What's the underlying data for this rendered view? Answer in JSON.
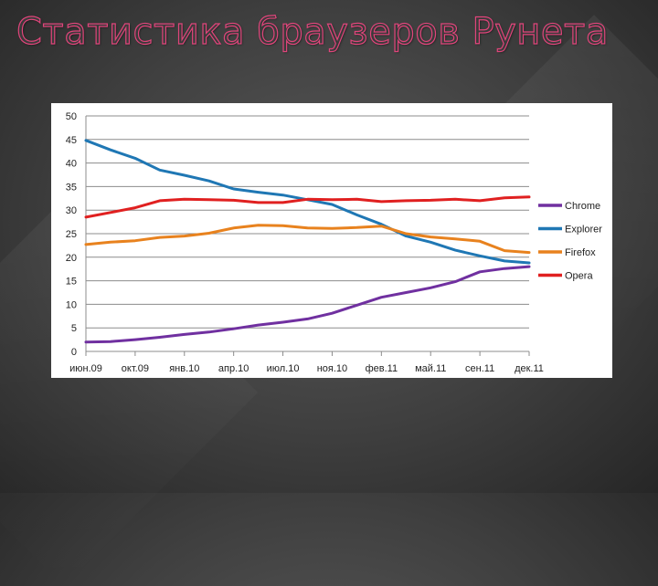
{
  "slide": {
    "title": "Статистика браузеров Рунета"
  },
  "chart_data": {
    "type": "line",
    "title": "",
    "xlabel": "",
    "ylabel": "",
    "ylim": [
      0,
      50
    ],
    "yticks": [
      0,
      5,
      10,
      15,
      20,
      25,
      30,
      35,
      40,
      45,
      50
    ],
    "grid": "horizontal",
    "legend": "right",
    "x_tick_labels": [
      "июн.09",
      "окт.09",
      "янв.10",
      "апр.10",
      "июл.10",
      "ноя.10",
      "фев.11",
      "май.11",
      "сен.11",
      "дек.11"
    ],
    "x_tick_positions": [
      0,
      1,
      2,
      3,
      4,
      5,
      6,
      7,
      8,
      9
    ],
    "x_max": 9,
    "series": [
      {
        "name": "Chrome",
        "color": "#7030a0",
        "x": [
          0,
          0.5,
          1,
          1.5,
          2,
          2.5,
          3,
          3.5,
          4,
          4.5,
          5,
          5.5,
          6,
          6.5,
          7,
          7.5,
          8,
          8.5,
          9
        ],
        "y": [
          2,
          2.1,
          2.5,
          3,
          3.6,
          4.1,
          4.8,
          5.6,
          6.2,
          6.9,
          8.1,
          9.8,
          11.5,
          12.5,
          13.5,
          14.8,
          16.9,
          17.6,
          18
        ]
      },
      {
        "name": "Explorer",
        "color": "#1f77b4",
        "x": [
          0,
          0.5,
          1,
          1.5,
          2,
          2.5,
          3,
          3.5,
          4,
          4.5,
          5,
          5.5,
          6,
          6.5,
          7,
          7.5,
          8,
          8.5,
          9
        ],
        "y": [
          44.8,
          42.8,
          41,
          38.5,
          37.4,
          36.2,
          34.5,
          33.8,
          33.2,
          32.2,
          31.2,
          29,
          27,
          24.5,
          23.2,
          21.5,
          20.3,
          19.2,
          18.8
        ]
      },
      {
        "name": "Firefox",
        "color": "#e8821e",
        "x": [
          0,
          0.5,
          1,
          1.5,
          2,
          2.5,
          3,
          3.5,
          4,
          4.5,
          5,
          5.5,
          6,
          6.5,
          7,
          7.5,
          8,
          8.5,
          9
        ],
        "y": [
          22.7,
          23.2,
          23.5,
          24.2,
          24.5,
          25.1,
          26.2,
          26.8,
          26.7,
          26.2,
          26.1,
          26.3,
          26.6,
          25,
          24.3,
          23.9,
          23.4,
          21.4,
          21
        ]
      },
      {
        "name": "Opera",
        "color": "#e02020",
        "x": [
          0,
          0.5,
          1,
          1.5,
          2,
          2.5,
          3,
          3.5,
          4,
          4.5,
          5,
          5.5,
          6,
          6.5,
          7,
          7.5,
          8,
          8.5,
          9
        ],
        "y": [
          28.5,
          29.5,
          30.5,
          32,
          32.3,
          32.2,
          32.1,
          31.6,
          31.6,
          32.3,
          32.2,
          32.3,
          31.8,
          32,
          32.1,
          32.3,
          32,
          32.6,
          32.8
        ]
      }
    ]
  }
}
